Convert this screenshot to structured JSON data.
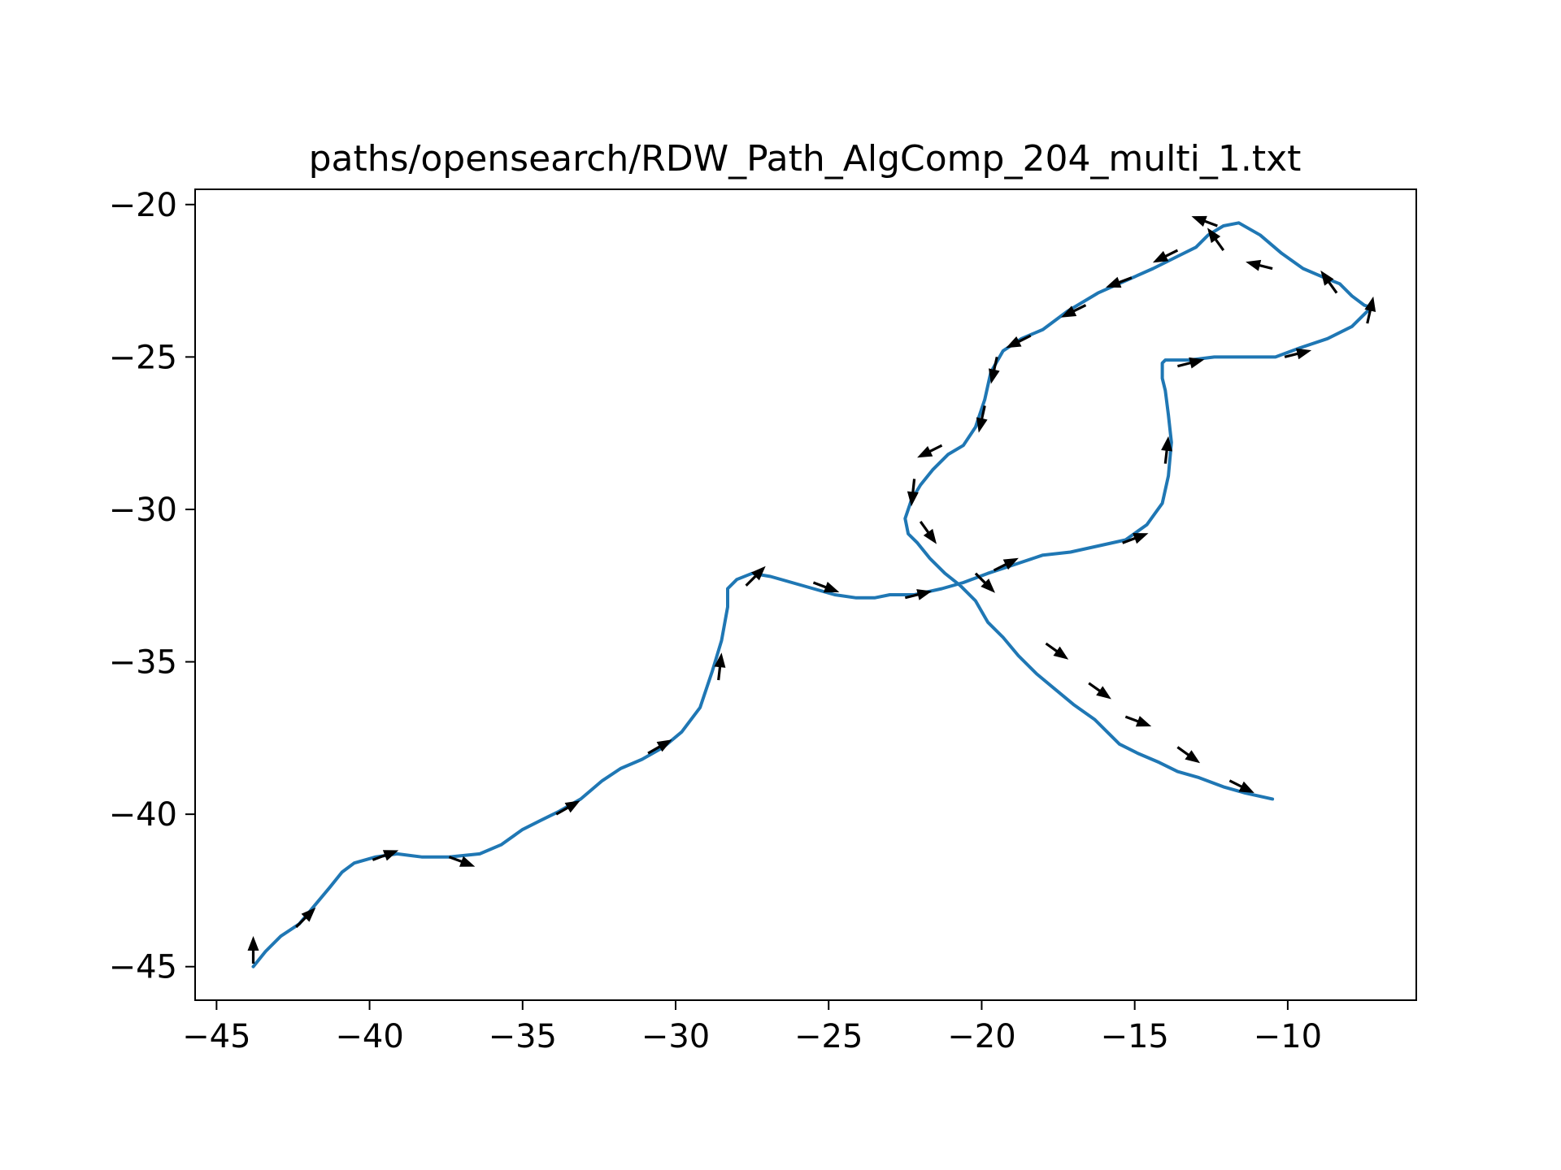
{
  "chart_data": {
    "type": "line",
    "title": "paths/opensearch/RDW_Path_AlgComp_204_multi_1.txt",
    "xlabel": "",
    "ylabel": "",
    "xlim": [
      -45.7,
      -5.8
    ],
    "ylim": [
      -46.1,
      -19.5
    ],
    "xticks": [
      -45,
      -40,
      -35,
      -30,
      -25,
      -20,
      -15,
      -10
    ],
    "yticks": [
      -20,
      -25,
      -30,
      -35,
      -40,
      -45
    ],
    "xtick_labels": [
      "−45",
      "−40",
      "−35",
      "−30",
      "−25",
      "−20",
      "−15",
      "−10"
    ],
    "ytick_labels": [
      "−20",
      "−25",
      "−30",
      "−35",
      "−40",
      "−45"
    ],
    "grid": false,
    "legend": "none",
    "colors": {
      "path": "#1f77b4",
      "arrow": "#000000",
      "axes": "#000000"
    },
    "series": [
      {
        "x": [
          -43.8,
          -43.4,
          -42.9,
          -42.3,
          -41.8,
          -41.3,
          -40.9,
          -40.5,
          -39.8,
          -39.1,
          -38.3,
          -37.4,
          -36.4,
          -35.7,
          -35.0,
          -34.4,
          -33.8,
          -33.1,
          -32.4,
          -31.8,
          -31.1,
          -30.4,
          -29.8,
          -29.2,
          -28.8,
          -28.5,
          -28.3,
          -28.3,
          -28.0,
          -27.5,
          -26.9,
          -26.2,
          -25.5,
          -24.8,
          -24.1,
          -23.5,
          -23.0,
          -22.2,
          -21.3,
          -20.6,
          -19.8,
          -18.9,
          -18.0,
          -17.1,
          -16.2,
          -15.3,
          -14.6,
          -14.1,
          -13.9,
          -13.8,
          -13.9,
          -14.0,
          -14.1,
          -14.1,
          -14.1,
          -14.0,
          -13.7,
          -13.2,
          -12.4,
          -11.4,
          -10.4,
          -9.6,
          -8.7,
          -7.9,
          -7.4,
          -7.2,
          -7.5,
          -7.9,
          -8.3,
          -8.8,
          -9.5,
          -10.2,
          -10.9,
          -11.6,
          -12.1,
          -12.6,
          -13.0,
          -13.6,
          -14.4,
          -15.3,
          -16.2,
          -17.2,
          -18.0,
          -18.7,
          -19.3,
          -19.7,
          -19.9,
          -20.2,
          -20.6,
          -21.1,
          -21.6,
          -22.0,
          -22.3,
          -22.5,
          -22.4,
          -22.1,
          -21.7,
          -21.2,
          -20.7,
          -20.2,
          -19.8,
          -19.3,
          -18.8,
          -18.2,
          -17.6,
          -17.0,
          -16.3,
          -15.9,
          -15.5,
          -14.9,
          -14.2,
          -13.6,
          -12.9,
          -12.1,
          -11.4,
          -10.5
        ],
        "y": [
          -45.0,
          -44.5,
          -44.0,
          -43.6,
          -43.0,
          -42.4,
          -41.9,
          -41.6,
          -41.4,
          -41.3,
          -41.4,
          -41.4,
          -41.3,
          -41.0,
          -40.5,
          -40.2,
          -39.9,
          -39.5,
          -38.9,
          -38.5,
          -38.2,
          -37.8,
          -37.3,
          -36.5,
          -35.3,
          -34.3,
          -33.2,
          -32.6,
          -32.3,
          -32.1,
          -32.2,
          -32.4,
          -32.6,
          -32.8,
          -32.9,
          -32.9,
          -32.8,
          -32.8,
          -32.6,
          -32.4,
          -32.1,
          -31.8,
          -31.5,
          -31.4,
          -31.2,
          -31.0,
          -30.5,
          -29.8,
          -28.9,
          -27.8,
          -26.9,
          -26.1,
          -25.7,
          -25.4,
          -25.2,
          -25.1,
          -25.1,
          -25.1,
          -25.0,
          -25.0,
          -25.0,
          -24.7,
          -24.4,
          -24.0,
          -23.5,
          -23.4,
          -23.3,
          -23.0,
          -22.6,
          -22.4,
          -22.1,
          -21.6,
          -21.0,
          -20.6,
          -20.7,
          -21.0,
          -21.4,
          -21.7,
          -22.1,
          -22.5,
          -22.9,
          -23.5,
          -24.1,
          -24.4,
          -24.8,
          -25.5,
          -26.4,
          -27.3,
          -27.9,
          -28.2,
          -28.7,
          -29.2,
          -29.7,
          -30.3,
          -30.8,
          -31.1,
          -31.6,
          -32.1,
          -32.5,
          -33.0,
          -33.7,
          -34.2,
          -34.8,
          -35.4,
          -35.9,
          -36.4,
          -36.9,
          -37.3,
          -37.7,
          -38.0,
          -38.3,
          -38.6,
          -38.8,
          -39.1,
          -39.3,
          -39.5
        ]
      }
    ],
    "arrows": [
      {
        "x": -43.8,
        "y": -44.9,
        "dx": 0.0,
        "dy": 0.9
      },
      {
        "x": -42.4,
        "y": -43.7,
        "dx": 0.6,
        "dy": 0.6
      },
      {
        "x": -39.9,
        "y": -41.5,
        "dx": 0.8,
        "dy": 0.3
      },
      {
        "x": -37.4,
        "y": -41.4,
        "dx": 0.8,
        "dy": -0.3
      },
      {
        "x": -33.9,
        "y": -40.0,
        "dx": 0.7,
        "dy": 0.4
      },
      {
        "x": -30.9,
        "y": -38.0,
        "dx": 0.7,
        "dy": 0.4
      },
      {
        "x": -28.6,
        "y": -35.6,
        "dx": 0.1,
        "dy": 0.9
      },
      {
        "x": -27.7,
        "y": -32.5,
        "dx": 0.6,
        "dy": 0.6
      },
      {
        "x": -25.5,
        "y": -32.4,
        "dx": 0.8,
        "dy": -0.3
      },
      {
        "x": -22.5,
        "y": -32.9,
        "dx": 0.8,
        "dy": 0.2
      },
      {
        "x": -19.6,
        "y": -32.0,
        "dx": 0.8,
        "dy": 0.4
      },
      {
        "x": -15.4,
        "y": -31.1,
        "dx": 0.8,
        "dy": 0.3
      },
      {
        "x": -14.0,
        "y": -28.5,
        "dx": 0.1,
        "dy": 0.9
      },
      {
        "x": -13.6,
        "y": -25.3,
        "dx": 0.8,
        "dy": 0.2
      },
      {
        "x": -10.1,
        "y": -25.0,
        "dx": 0.8,
        "dy": 0.2
      },
      {
        "x": -7.4,
        "y": -23.9,
        "dx": 0.2,
        "dy": 0.9
      },
      {
        "x": -8.4,
        "y": -22.9,
        "dx": -0.5,
        "dy": 0.7
      },
      {
        "x": -10.5,
        "y": -22.1,
        "dx": -0.8,
        "dy": 0.2
      },
      {
        "x": -12.1,
        "y": -21.5,
        "dx": -0.5,
        "dy": 0.7
      },
      {
        "x": -12.3,
        "y": -20.7,
        "dx": -0.8,
        "dy": 0.3
      },
      {
        "x": -13.6,
        "y": -21.5,
        "dx": -0.8,
        "dy": -0.4
      },
      {
        "x": -15.1,
        "y": -22.4,
        "dx": -0.8,
        "dy": -0.3
      },
      {
        "x": -16.6,
        "y": -23.3,
        "dx": -0.8,
        "dy": -0.4
      },
      {
        "x": -18.4,
        "y": -24.3,
        "dx": -0.8,
        "dy": -0.4
      },
      {
        "x": -19.5,
        "y": -25.0,
        "dx": -0.2,
        "dy": -0.9
      },
      {
        "x": -19.9,
        "y": -26.6,
        "dx": -0.2,
        "dy": -0.9
      },
      {
        "x": -21.3,
        "y": -27.9,
        "dx": -0.8,
        "dy": -0.4
      },
      {
        "x": -22.2,
        "y": -29.0,
        "dx": -0.1,
        "dy": -0.9
      },
      {
        "x": -22.0,
        "y": -30.4,
        "dx": 0.5,
        "dy": -0.7
      },
      {
        "x": -20.2,
        "y": -32.1,
        "dx": 0.6,
        "dy": -0.6
      },
      {
        "x": -17.9,
        "y": -34.4,
        "dx": 0.7,
        "dy": -0.5
      },
      {
        "x": -16.5,
        "y": -35.7,
        "dx": 0.7,
        "dy": -0.5
      },
      {
        "x": -15.3,
        "y": -36.8,
        "dx": 0.8,
        "dy": -0.3
      },
      {
        "x": -13.6,
        "y": -37.8,
        "dx": 0.7,
        "dy": -0.5
      },
      {
        "x": -11.9,
        "y": -38.9,
        "dx": 0.8,
        "dy": -0.4
      }
    ]
  }
}
